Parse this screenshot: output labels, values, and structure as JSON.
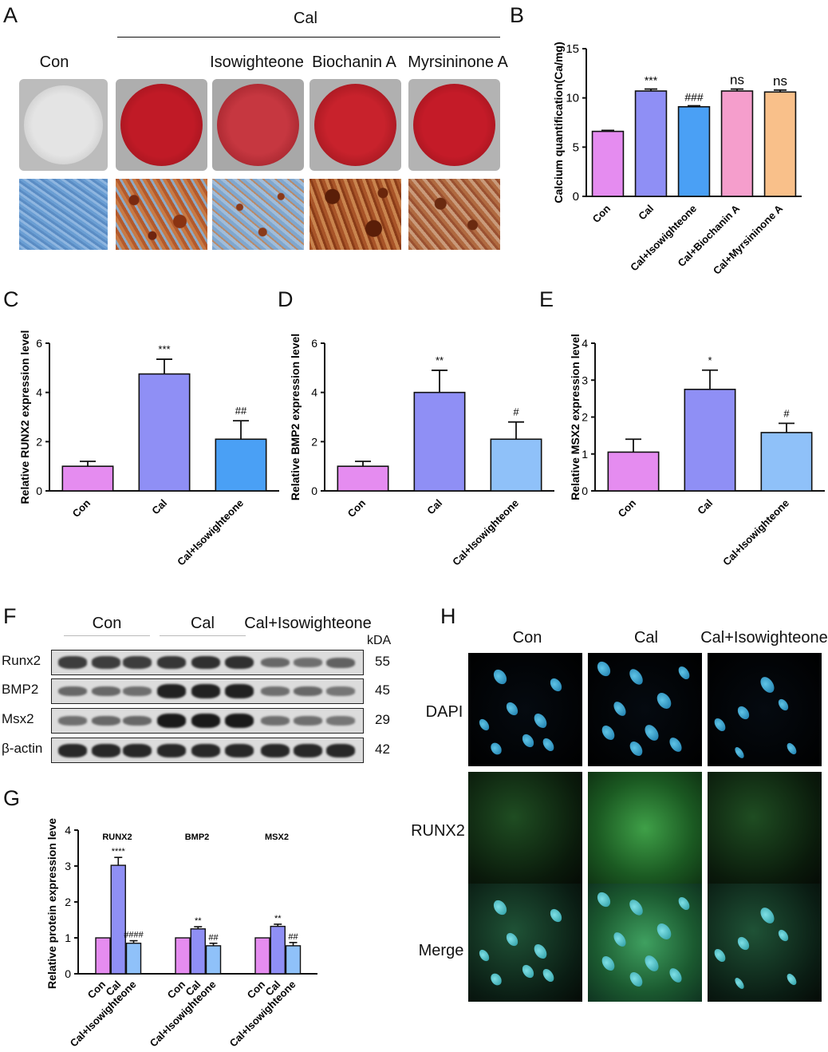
{
  "panelA": {
    "label": "A",
    "group_header": "Cal",
    "columns": [
      "Con",
      "Isowighteone",
      "Biochanin A",
      "Myrsininone A"
    ],
    "dish_colors": [
      "#dcdcdc",
      "#c41c26",
      "#c43238",
      "#c41b28",
      "#c21a24"
    ]
  },
  "chart_data": [
    {
      "panel": "B",
      "type": "bar",
      "title": "",
      "ylabel": "Calcium quantification(Ca/mg)",
      "xlabel": "",
      "ylim": [
        0,
        15
      ],
      "yticks": [
        0,
        5,
        10,
        15
      ],
      "categories": [
        "Con",
        "Cal",
        "Cal+Isowighteone",
        "Cal+Biochanin A",
        "Cal+Myrsininone A"
      ],
      "values": [
        6.6,
        10.7,
        9.1,
        10.7,
        10.6
      ],
      "errors": [
        0.1,
        0.2,
        0.1,
        0.2,
        0.2
      ],
      "annotations": [
        "",
        "***",
        "###",
        "ns",
        "ns"
      ],
      "colors": [
        "#e58cf0",
        "#8f8ff5",
        "#4aa0f5",
        "#f59ecc",
        "#f9c08a"
      ]
    },
    {
      "panel": "C",
      "type": "bar",
      "title": "",
      "ylabel": "Relative RUNX2 expression level",
      "xlabel": "",
      "ylim": [
        0,
        6
      ],
      "yticks": [
        0,
        2,
        4,
        6
      ],
      "categories": [
        "Con",
        "Cal",
        "Cal+Isowighteone"
      ],
      "values": [
        1.0,
        4.75,
        2.1
      ],
      "errors": [
        0.2,
        0.6,
        0.75
      ],
      "annotations": [
        "",
        "***",
        "##"
      ],
      "colors": [
        "#e58cf0",
        "#8f8ff5",
        "#4aa0f5"
      ]
    },
    {
      "panel": "D",
      "type": "bar",
      "title": "",
      "ylabel": "Relative BMP2 expression level",
      "xlabel": "",
      "ylim": [
        0,
        6
      ],
      "yticks": [
        0,
        2,
        4,
        6
      ],
      "categories": [
        "Con",
        "Cal",
        "Cal+Isowighteone"
      ],
      "values": [
        1.0,
        4.0,
        2.1
      ],
      "errors": [
        0.2,
        0.9,
        0.7
      ],
      "annotations": [
        "",
        "**",
        "#"
      ],
      "colors": [
        "#e58cf0",
        "#8f8ff5",
        "#8fc1f9"
      ]
    },
    {
      "panel": "E",
      "type": "bar",
      "title": "",
      "ylabel": "Relative MSX2 expression level",
      "xlabel": "",
      "ylim": [
        0,
        4
      ],
      "yticks": [
        0,
        1,
        2,
        3,
        4
      ],
      "categories": [
        "Con",
        "Cal",
        "Cal+Isowighteone"
      ],
      "values": [
        1.05,
        2.75,
        1.58
      ],
      "errors": [
        0.35,
        0.52,
        0.25
      ],
      "annotations": [
        "*",
        "#"
      ],
      "annotation_index": [
        1,
        2
      ],
      "colors": [
        "#e58cf0",
        "#8f8ff5",
        "#8fc1f9"
      ]
    },
    {
      "panel": "G",
      "type": "bar",
      "title": "",
      "ylabel": "Relative protein expression level",
      "xlabel": "",
      "ylim": [
        0,
        4
      ],
      "yticks": [
        0,
        1,
        2,
        3,
        4
      ],
      "groups": [
        "RUNX2",
        "BMP2",
        "MSX2"
      ],
      "categories": [
        "Con",
        "Cal",
        "Cal+Isowighteone"
      ],
      "series": [
        {
          "group": "RUNX2",
          "values": [
            1.0,
            3.02,
            0.85
          ],
          "errors": [
            0,
            0.22,
            0.07
          ],
          "annotations": [
            "",
            "****",
            "####"
          ]
        },
        {
          "group": "BMP2",
          "values": [
            1.0,
            1.25,
            0.78
          ],
          "errors": [
            0,
            0.06,
            0.07
          ],
          "annotations": [
            "",
            "**",
            "##"
          ]
        },
        {
          "group": "MSX2",
          "values": [
            1.0,
            1.32,
            0.78
          ],
          "errors": [
            0,
            0.06,
            0.09
          ],
          "annotations": [
            "",
            "**",
            "##"
          ]
        }
      ],
      "colors": [
        "#e58cf0",
        "#8f8ff5",
        "#8fc1f9"
      ]
    }
  ],
  "panelF": {
    "label": "F",
    "groups": [
      "Con",
      "Cal",
      "Cal+Isowighteone"
    ],
    "kda_header": "kDA",
    "rows": [
      {
        "name": "Runx2",
        "kda": "55",
        "intensity": [
          0.75,
          0.75,
          0.75,
          0.8,
          0.85,
          0.85,
          0.45,
          0.4,
          0.5
        ]
      },
      {
        "name": "BMP2",
        "kda": "45",
        "intensity": [
          0.45,
          0.45,
          0.4,
          0.95,
          0.95,
          0.95,
          0.4,
          0.45,
          0.35
        ]
      },
      {
        "name": "Msx2",
        "kda": "29",
        "intensity": [
          0.4,
          0.45,
          0.45,
          1.0,
          1.0,
          1.0,
          0.4,
          0.4,
          0.35
        ]
      },
      {
        "name": "β-actin",
        "kda": "42",
        "intensity": [
          0.9,
          0.9,
          0.9,
          0.9,
          0.9,
          0.9,
          0.9,
          0.9,
          0.9
        ]
      }
    ]
  },
  "panelH": {
    "label": "H",
    "columns": [
      "Con",
      "Cal",
      "Cal+Isowighteone"
    ],
    "rows": [
      "DAPI",
      "RUNX2",
      "Merge"
    ]
  },
  "labels": {
    "B": "B",
    "C": "C",
    "D": "D",
    "E": "E",
    "G": "G"
  }
}
